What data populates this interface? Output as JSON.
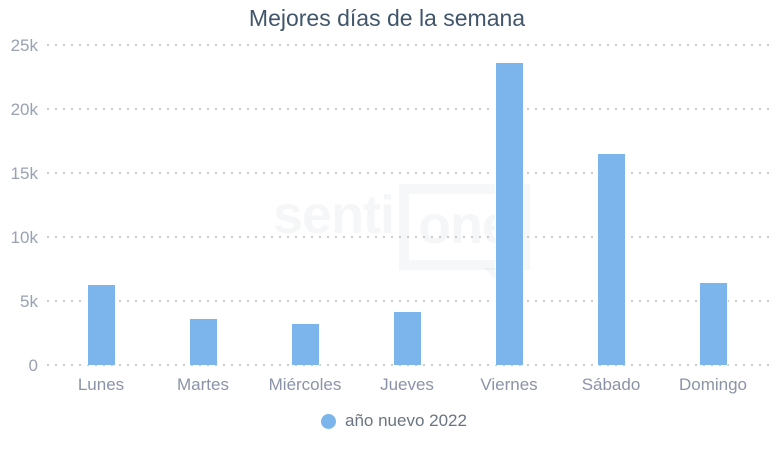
{
  "chart_data": {
    "type": "bar",
    "title": "Mejores días de la semana",
    "categories": [
      "Lunes",
      "Martes",
      "Miércoles",
      "Jueves",
      "Viernes",
      "Sábado",
      "Domingo"
    ],
    "series": [
      {
        "name": "año nuevo 2022",
        "values": [
          6300,
          3650,
          3250,
          4200,
          23700,
          16550,
          6500
        ]
      }
    ],
    "xlabel": "",
    "ylabel": "",
    "ylim": [
      0,
      25000
    ],
    "y_ticks": [
      "0",
      "5k",
      "10k",
      "15k",
      "20k",
      "25k"
    ],
    "grid": "horizontal-dotted",
    "legend_position": "bottom-center",
    "bar_color": "#7cb5ec"
  },
  "legend": {
    "label": "año nuevo 2022",
    "marker_color": "#7cb5ec"
  },
  "watermark": {
    "text_left": "senti",
    "text_right": "one"
  },
  "colors": {
    "bar": "#7cb5ec",
    "title": "#42566b",
    "x_label": "#8b93a8",
    "y_label": "#99a1b3",
    "legend_text": "#6a7582",
    "grid_dot": "#cbcbcb"
  }
}
